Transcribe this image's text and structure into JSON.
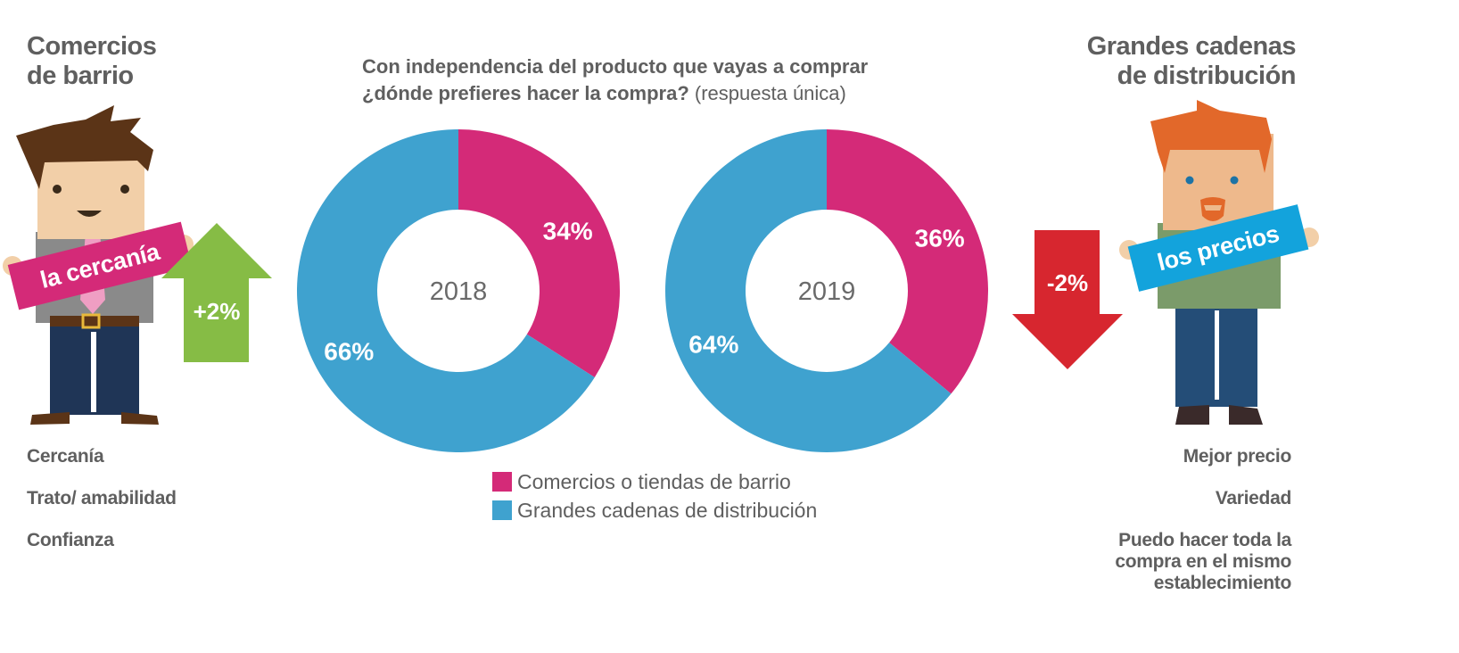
{
  "left": {
    "title_line1": "Comercios",
    "title_line2": "de barrio",
    "sign": "la cercanía",
    "change": "+2%",
    "reasons": [
      "Cercanía",
      "Trato/ amabilidad",
      "Confianza"
    ]
  },
  "right": {
    "title_line1": "Grandes cadenas",
    "title_line2": "de distribución",
    "sign": "los precios",
    "change": "-2%",
    "reasons": [
      "Mejor precio",
      "Variedad",
      "Puedo hacer toda la",
      "compra en el mismo",
      "establecimiento"
    ]
  },
  "question": {
    "line1": "Con independencia del producto que vayas a comprar",
    "line2_bold": "¿dónde prefieres hacer la compra?",
    "line2_rest": " (respuesta única)"
  },
  "legend": [
    "Comercios o tiendas de barrio",
    "Grandes cadenas de distribución"
  ],
  "colors": {
    "pink": "#d42a78",
    "blue": "#3fa2cf",
    "green": "#86bc45",
    "red": "#d7262f"
  },
  "chart_data": [
    {
      "type": "pie",
      "center_label": "2018",
      "series": [
        {
          "name": "Comercios o tiendas de barrio",
          "value": 34,
          "label": "34%"
        },
        {
          "name": "Grandes cadenas de distribución",
          "value": 66,
          "label": "66%"
        }
      ]
    },
    {
      "type": "pie",
      "center_label": "2019",
      "series": [
        {
          "name": "Comercios o tiendas de barrio",
          "value": 36,
          "label": "36%"
        },
        {
          "name": "Grandes cadenas de distribución",
          "value": 64,
          "label": "64%"
        }
      ]
    }
  ]
}
